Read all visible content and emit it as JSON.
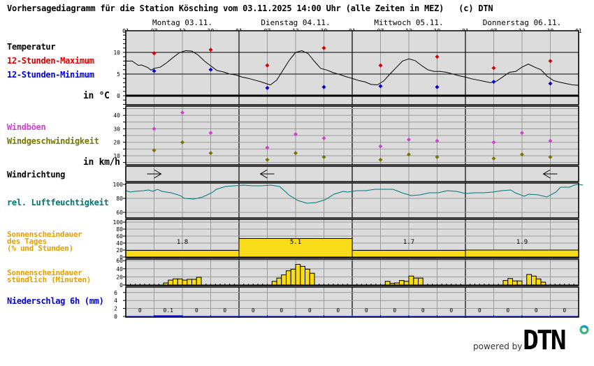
{
  "header": {
    "title": "Vorhersagediagramm für die Station Kösching vom 03.11.2025 14:00 Uhr (alle Zeiten in MEZ)   (c) DTN"
  },
  "days": [
    {
      "label": "Montag 03.11."
    },
    {
      "label": "Dienstag 04.11."
    },
    {
      "label": "Mittwoch 05.11."
    },
    {
      "label": "Donnerstag 06.11."
    }
  ],
  "hour_ticks": [
    "01",
    "07",
    "13",
    "19",
    "01",
    "07",
    "13",
    "19",
    "01",
    "07",
    "13",
    "19",
    "01",
    "07",
    "13",
    "19",
    "01"
  ],
  "labels": {
    "temperature": "Temperatur",
    "max12": "12-Stunden-Maximum",
    "min12": "12-Stunden-Minimum",
    "temp_unit": "in °C",
    "gusts": "Windböen",
    "windspeed": "Windgeschwindigkeit",
    "wind_unit": "in km/h",
    "winddir": "Windrichtung",
    "humidity": "rel. Luftfeuchtigkeit",
    "sun_day_1": "Sonnenscheindauer",
    "sun_day_2": "des Tages",
    "sun_day_3": "(% und Stunden)",
    "sun_hour_1": "Sonnenscheindauer",
    "sun_hour_2": "stündlich (Minuten)",
    "precip": "Niederschlag 6h (mm)"
  },
  "footer": {
    "powered_by": "powered by",
    "brand": "DTN"
  },
  "colors": {
    "max": "#dd0000",
    "min": "#0000dd",
    "gust": "#cc44cc",
    "wind": "#777700",
    "humidity": "#007777",
    "sunshine_label": "#e8a000",
    "sunshine_fill": "#f8dc1a",
    "precip": "#0000dd",
    "panel_bg": "#dcdcdc"
  },
  "chart_data": {
    "type": "line",
    "title": "Vorhersagediagramm für die Station Kösching vom 03.11.2025 14:00 Uhr (alle Zeiten in MEZ)",
    "x_hours": [
      0,
      6,
      12,
      18,
      24,
      30,
      36,
      42,
      48,
      54,
      60,
      66,
      72,
      78,
      84,
      90,
      96
    ],
    "temperature": {
      "unit": "°C",
      "ylim": [
        -2,
        15
      ],
      "yticks": [
        0,
        5,
        10
      ],
      "curve": [
        [
          0,
          8.0
        ],
        [
          2,
          8.0
        ],
        [
          4,
          7.0
        ],
        [
          5,
          7.1
        ],
        [
          7,
          6.5
        ],
        [
          8,
          5.9
        ],
        [
          9,
          6.3
        ],
        [
          11,
          6.6
        ],
        [
          13,
          7.6
        ],
        [
          15,
          8.8
        ],
        [
          17,
          9.9
        ],
        [
          19,
          10.4
        ],
        [
          21,
          10.3
        ],
        [
          23,
          9.4
        ],
        [
          25,
          8.0
        ],
        [
          27,
          6.9
        ],
        [
          29,
          5.8
        ],
        [
          31,
          5.5
        ],
        [
          33,
          5.0
        ],
        [
          35,
          4.8
        ],
        [
          37,
          4.3
        ],
        [
          39,
          4.0
        ],
        [
          41,
          3.6
        ],
        [
          43,
          3.2
        ],
        [
          45,
          2.7
        ],
        [
          46,
          2.5
        ],
        [
          48,
          3.6
        ],
        [
          50,
          5.9
        ],
        [
          52,
          8.2
        ],
        [
          54,
          10.0
        ],
        [
          56,
          10.4
        ],
        [
          58,
          9.7
        ],
        [
          60,
          7.9
        ],
        [
          62,
          6.3
        ],
        [
          64,
          5.9
        ],
        [
          66,
          5.3
        ],
        [
          68,
          4.9
        ],
        [
          70,
          4.4
        ],
        [
          72,
          4.0
        ],
        [
          74,
          3.5
        ],
        [
          76,
          3.2
        ],
        [
          78,
          2.6
        ],
        [
          80,
          2.5
        ],
        [
          82,
          3.4
        ],
        [
          84,
          5.0
        ],
        [
          86,
          6.5
        ],
        [
          88,
          8.0
        ],
        [
          90,
          8.5
        ],
        [
          92,
          8.1
        ],
        [
          94,
          7.0
        ],
        [
          96,
          6.0
        ],
        [
          98,
          5.6
        ],
        [
          100,
          5.6
        ],
        [
          102,
          5.4
        ],
        [
          104,
          5.0
        ],
        [
          106,
          4.6
        ],
        [
          108,
          4.3
        ],
        [
          110,
          3.9
        ],
        [
          112,
          3.6
        ],
        [
          114,
          3.3
        ],
        [
          116,
          3.0
        ],
        [
          118,
          3.4
        ],
        [
          120,
          4.4
        ],
        [
          122,
          5.4
        ],
        [
          124,
          5.6
        ],
        [
          126,
          6.6
        ],
        [
          128,
          7.3
        ],
        [
          130,
          6.6
        ],
        [
          132,
          6.0
        ],
        [
          134,
          4.5
        ],
        [
          136,
          3.5
        ],
        [
          138,
          3.1
        ],
        [
          140,
          2.8
        ],
        [
          142,
          2.5
        ],
        [
          144,
          2.4
        ]
      ],
      "max12": [
        [
          42,
          9.8
        ],
        [
          78,
          10.6
        ],
        [
          150,
          7.0
        ],
        [
          186,
          11.0
        ],
        [
          258,
          7.0
        ],
        [
          294,
          9.0
        ],
        [
          366,
          6.4
        ],
        [
          402,
          8.0
        ]
      ],
      "min12": [
        [
          42,
          5.7
        ],
        [
          78,
          6.0
        ],
        [
          150,
          1.8
        ],
        [
          186,
          2.0
        ],
        [
          258,
          2.2
        ],
        [
          294,
          2.0
        ],
        [
          366,
          3.2
        ],
        [
          402,
          2.8
        ]
      ],
      "max12_values": [
        9.8,
        10.6,
        7.0,
        11.0,
        7.0,
        9.0,
        6.4,
        8.0
      ],
      "min12_values": [
        5.7,
        6.0,
        1.8,
        2.0,
        2.2,
        2.0,
        3.2,
        2.8
      ],
      "marker_hours": [
        6,
        18,
        30,
        42,
        54,
        66,
        78,
        90
      ]
    },
    "wind": {
      "unit": "km/h",
      "ylim": [
        0,
        48
      ],
      "yticks": [
        10,
        20,
        30,
        40
      ],
      "hours": [
        6,
        12,
        18,
        30,
        36,
        42,
        54,
        60,
        66,
        78,
        84,
        90
      ],
      "gusts": [
        30,
        42,
        27,
        16,
        26,
        23,
        17,
        22,
        21,
        20,
        27,
        21
      ],
      "speed": [
        14,
        20,
        12,
        7,
        12,
        9,
        7,
        11,
        9,
        8,
        11,
        9
      ]
    },
    "wind_direction": [
      {
        "hour": 6,
        "direction": "arrow-right"
      },
      {
        "hour": 30,
        "direction": "arrow-left"
      },
      {
        "hour": 90,
        "direction": "arrow-left"
      }
    ],
    "humidity": {
      "unit": "%",
      "ylim": [
        50,
        102
      ],
      "yticks": [
        60,
        80,
        100
      ],
      "curve": [
        [
          0,
          91
        ],
        [
          1,
          89
        ],
        [
          2,
          90
        ],
        [
          4,
          91
        ],
        [
          5,
          92
        ],
        [
          6,
          90
        ],
        [
          7,
          93
        ],
        [
          8,
          90
        ],
        [
          10,
          88
        ],
        [
          12,
          84
        ],
        [
          13,
          80
        ],
        [
          15,
          79
        ],
        [
          17,
          82
        ],
        [
          19,
          88
        ],
        [
          20,
          93
        ],
        [
          22,
          97
        ],
        [
          24,
          98
        ],
        [
          26,
          99
        ],
        [
          28,
          98
        ],
        [
          30,
          98
        ],
        [
          32,
          99
        ],
        [
          34,
          97
        ],
        [
          36,
          85
        ],
        [
          38,
          77
        ],
        [
          40,
          73
        ],
        [
          42,
          74
        ],
        [
          44,
          78
        ],
        [
          46,
          86
        ],
        [
          48,
          90
        ],
        [
          49,
          89
        ],
        [
          51,
          91
        ],
        [
          53,
          91
        ],
        [
          55,
          93
        ],
        [
          57,
          93
        ],
        [
          59,
          93
        ],
        [
          61,
          88
        ],
        [
          63,
          84
        ],
        [
          65,
          85
        ],
        [
          67,
          88
        ],
        [
          69,
          88
        ],
        [
          71,
          91
        ],
        [
          73,
          90
        ],
        [
          75,
          87
        ],
        [
          77,
          88
        ],
        [
          79,
          88
        ],
        [
          81,
          89
        ],
        [
          83,
          91
        ],
        [
          85,
          92
        ],
        [
          86,
          88
        ],
        [
          88,
          83
        ],
        [
          89,
          86
        ],
        [
          91,
          85
        ],
        [
          93,
          82
        ],
        [
          95,
          89
        ],
        [
          96,
          96
        ],
        [
          98,
          96
        ],
        [
          99,
          99
        ],
        [
          100,
          100
        ],
        [
          101,
          99
        ]
      ],
      "curve_hour_scale": 0.96
    },
    "sunshine_daily": {
      "unit": "% / h",
      "ylim": [
        0,
        100
      ],
      "yticks": [
        0,
        20,
        40,
        60,
        80,
        100
      ],
      "percent": [
        19,
        53,
        19,
        20
      ],
      "hours": [
        "1.8",
        "5.1",
        "1.7",
        "1.9"
      ]
    },
    "sunshine_hourly": {
      "unit": "min",
      "ylim": [
        0,
        60
      ],
      "yticks": [
        0,
        20,
        40,
        60
      ],
      "bars": [
        {
          "day": 0,
          "start_hour": 8,
          "values": [
            5,
            12,
            15,
            15,
            12,
            14,
            14,
            19
          ]
        },
        {
          "day": 1,
          "start_hour": 7,
          "values": [
            9,
            17,
            25,
            35,
            39,
            51,
            46,
            39,
            29
          ]
        },
        {
          "day": 2,
          "start_hour": 7,
          "values": [
            9,
            4,
            5,
            11,
            9,
            22,
            17,
            17
          ]
        },
        {
          "day": 3,
          "start_hour": 8,
          "values": [
            11,
            16,
            10,
            10,
            0,
            26,
            22,
            15,
            7
          ]
        }
      ]
    },
    "precipitation_6h": {
      "unit": "mm",
      "ylim": [
        0,
        7
      ],
      "yticks": [
        0,
        2,
        4,
        6
      ],
      "values": [
        "0",
        "0.1",
        "0",
        "0",
        "0",
        "0",
        "0",
        "0",
        "0",
        "0",
        "0",
        "0",
        "0",
        "0",
        "0",
        "0"
      ]
    }
  }
}
